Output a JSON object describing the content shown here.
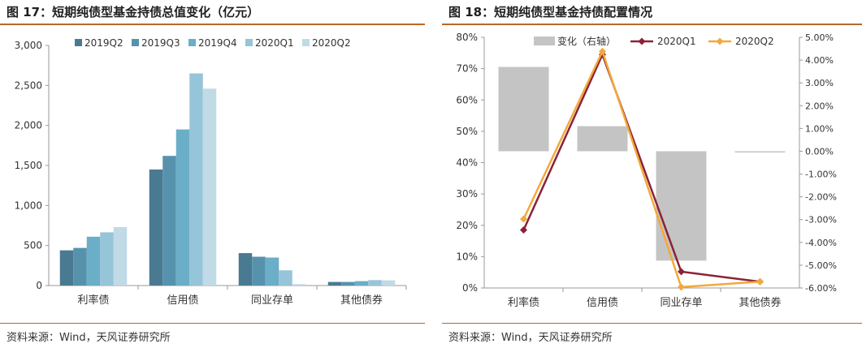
{
  "charts": [
    {
      "title": "图 17：短期纯债型基金持债总值变化（亿元）",
      "source": "资料来源：Wind，天风证券研究所",
      "chart_data": {
        "type": "bar",
        "categories": [
          "利率债",
          "信用债",
          "同业存单",
          "其他债券"
        ],
        "series": [
          {
            "name": "2019Q2",
            "color": "#4a7a92",
            "values": [
              440,
              1450,
              405,
              45
            ]
          },
          {
            "name": "2019Q3",
            "color": "#5792ad",
            "values": [
              470,
              1620,
              360,
              45
            ]
          },
          {
            "name": "2019Q4",
            "color": "#6aaec8",
            "values": [
              610,
              1950,
              350,
              55
            ]
          },
          {
            "name": "2020Q1",
            "color": "#96c4d8",
            "values": [
              665,
              2650,
              190,
              68
            ]
          },
          {
            "name": "2020Q2",
            "color": "#c0dae6",
            "values": [
              730,
              2460,
              18,
              65
            ]
          }
        ],
        "ylim": [
          0,
          3000
        ],
        "yticks": [
          "0",
          "500",
          "1,000",
          "1,500",
          "2,000",
          "2,500",
          "3,000"
        ],
        "legend": "top"
      }
    },
    {
      "title": "图 18：短期纯债型基金持债配置情况",
      "source": "资料来源：Wind，天风证券研究所",
      "chart_data": {
        "type": "bar+line",
        "categories": [
          "利率债",
          "信用债",
          "同业存单",
          "其他债券"
        ],
        "bar_series": {
          "name": "变化（右轴）",
          "color": "#c4c4c4",
          "axis": "right",
          "values": [
            3.7,
            1.1,
            -4.8,
            0.0
          ]
        },
        "line_series": [
          {
            "name": "2020Q1",
            "color": "#8b2236",
            "axis": "left",
            "values": [
              18.5,
              74.5,
              5.2,
              2.0
            ]
          },
          {
            "name": "2020Q2",
            "color": "#f2a93b",
            "axis": "left",
            "values": [
              22.0,
              75.5,
              0.3,
              2.0
            ]
          }
        ],
        "ylim_left": [
          0,
          80
        ],
        "yticks_left": [
          "0%",
          "10%",
          "20%",
          "30%",
          "40%",
          "50%",
          "60%",
          "70%",
          "80%"
        ],
        "ylim_right": [
          -6,
          5
        ],
        "yticks_right": [
          "-6.00%",
          "-5.00%",
          "-4.00%",
          "-3.00%",
          "-2.00%",
          "-1.00%",
          "0.00%",
          "1.00%",
          "2.00%",
          "3.00%",
          "4.00%",
          "5.00%"
        ],
        "legend": "top"
      }
    }
  ]
}
